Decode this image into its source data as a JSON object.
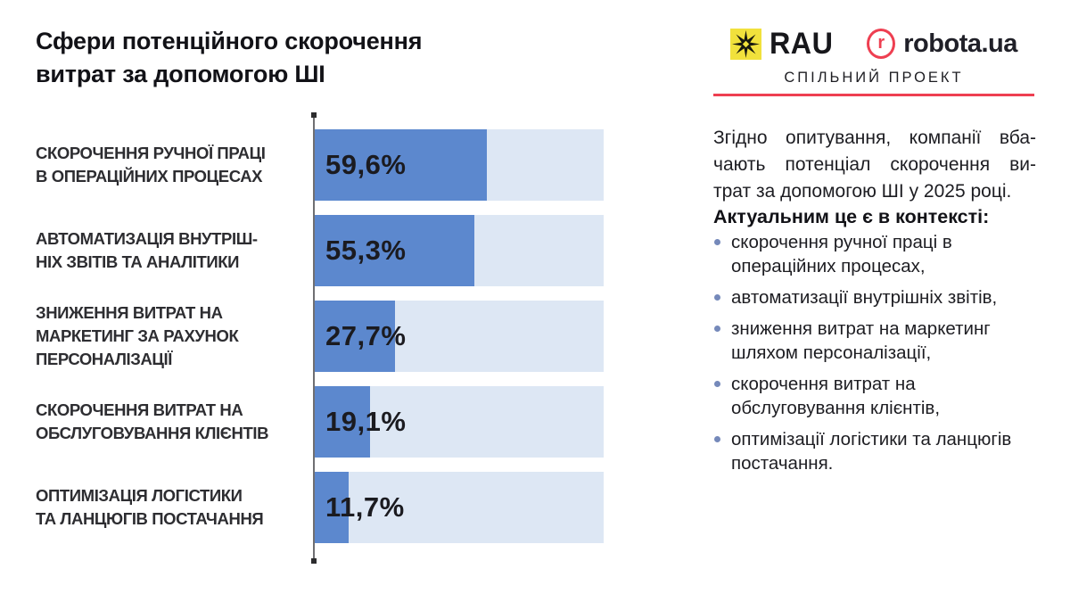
{
  "title": "Сфери потенційного скорочення\nвитрат за допомогою ШІ",
  "header": {
    "rau_label": "RAU",
    "rau_mark": "eight-point-star",
    "robota_icon_letter": "r",
    "robota_label": "robota.ua",
    "subtitle": "СПІЛЬНИЙ ПРОЕКТ"
  },
  "colors": {
    "bar_fill": "#5c88ce",
    "bar_track": "#dde7f4",
    "accent_red": "#ee3f51",
    "rau_yellow": "#f1e13c",
    "bullet_blue": "#7589ba",
    "text_dark": "#1d1d22"
  },
  "chart_data": {
    "type": "bar",
    "orientation": "horizontal",
    "title": "Сфери потенційного скорочення витрат за допомогою ШІ",
    "categories": [
      "СКОРОЧЕННЯ РУЧНОЇ ПРАЦІ В ОПЕРАЦІЙНИХ ПРОЦЕСАХ",
      "АВТОМАТИЗАЦІЯ ВНУТРІШНІХ ЗВІТІВ ТА АНАЛІТИКИ",
      "ЗНИЖЕННЯ ВИТРАТ НА МАРКЕТИНГ ЗА РАХУНОК ПЕРСОНАЛІЗАЦІЇ",
      "СКОРОЧЕННЯ ВИТРАТ НА ОБСЛУГОВУВАННЯ КЛІЄНТІВ",
      "ОПТИМІЗАЦІЯ ЛОГІСТИКИ ТА ЛАНЦЮГІВ ПОСТАЧАННЯ"
    ],
    "category_display": [
      "СКОРОЧЕННЯ РУЧНОЇ ПРАЦІ\nВ ОПЕРАЦІЙНИХ ПРОЦЕСАХ",
      "АВТОМАТИЗАЦІЯ ВНУТРІШ-\nНІХ ЗВІТІВ ТА АНАЛІТИКИ",
      "ЗНИЖЕННЯ ВИТРАТ НА\nМАРКЕТИНГ ЗА РАХУНОК\nПЕРСОНАЛІЗАЦІЇ",
      "СКОРОЧЕННЯ ВИТРАТ НА\nОБСЛУГОВУВАННЯ КЛІЄНТІВ",
      "ОПТИМІЗАЦІЯ ЛОГІСТИКИ\nТА ЛАНЦЮГІВ ПОСТАЧАННЯ"
    ],
    "values": [
      59.6,
      55.3,
      27.7,
      19.1,
      11.7
    ],
    "value_labels": [
      "59,6%",
      "55,3%",
      "27,7%",
      "19,1%",
      "11,7%"
    ],
    "xlim": [
      0,
      100
    ],
    "grid": false,
    "legend": false
  },
  "right_panel": {
    "paragraph_lines": [
      "Згідно опитування, компанії вба-",
      "чають потенціал скорочення ви-",
      "трат за допомогою ШІ у 2025 році."
    ],
    "context_heading": "Актуальним це є в контексті:",
    "bullets": [
      "скорочення ручної праці в операційних процесах,",
      "автоматизації внутрішніх звітів,",
      "зниження витрат на маркетинг шляхом персоналізації,",
      "скорочення витрат на обслуговування клієнтів,",
      "оптимізації логістики та ланцюгів постачання."
    ]
  }
}
